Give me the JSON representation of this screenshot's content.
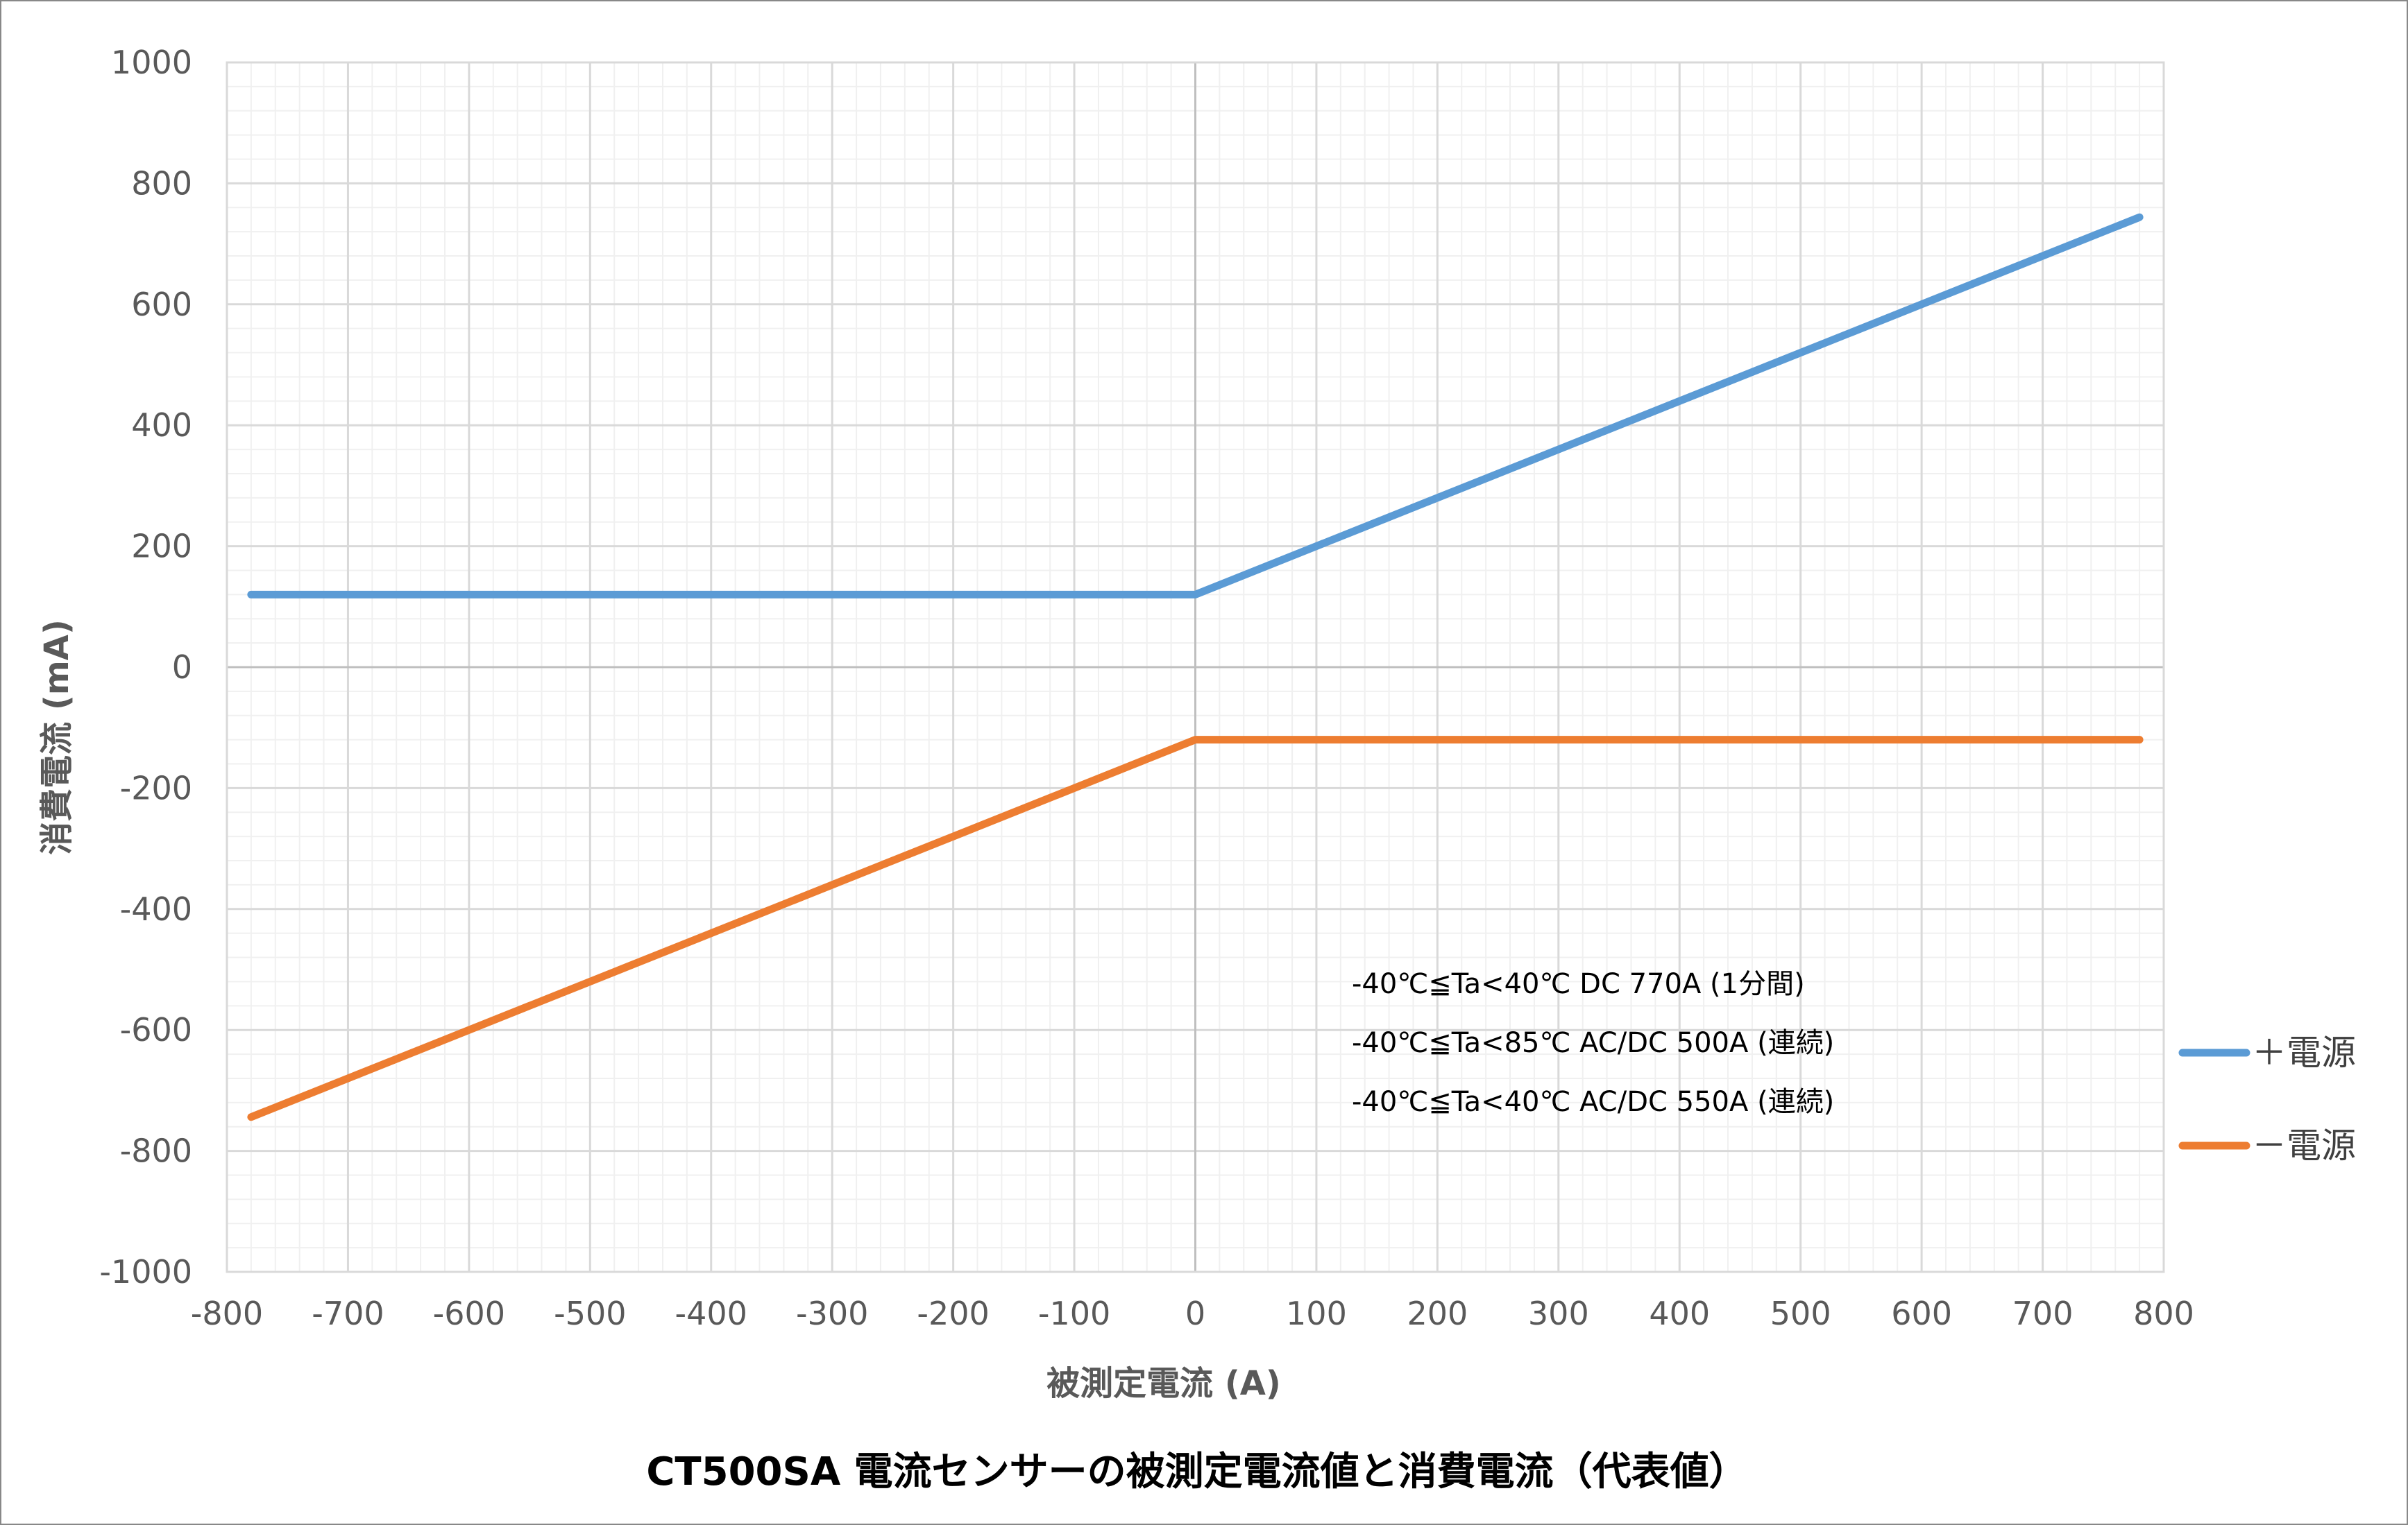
{
  "chart_data": {
    "type": "line",
    "title": "CT500SA 電流センサーの被測定電流値と消費電流（代表値）",
    "xlabel": "被測定電流 (A)",
    "ylabel": "消費電流 (mA)",
    "xlim": [
      -800,
      800
    ],
    "ylim": [
      -1000,
      1000
    ],
    "x_ticks": [
      "-800",
      "-700",
      "-600",
      "-500",
      "-400",
      "-300",
      "-200",
      "-100",
      "0",
      "100",
      "200",
      "300",
      "400",
      "500",
      "600",
      "700",
      "800"
    ],
    "y_ticks": [
      "1000",
      "800",
      "600",
      "400",
      "200",
      "0",
      "-200",
      "-400",
      "-600",
      "-800",
      "-1000"
    ],
    "x_major_step": 100,
    "y_major_step": 200,
    "minor_grid_divisions": 5,
    "grid": true,
    "legend_position": "right",
    "series": [
      {
        "name": "＋電源",
        "color": "#5B9BD5",
        "x": [
          -780,
          0,
          780
        ],
        "y": [
          120,
          120,
          744
        ]
      },
      {
        "name": "－電源",
        "color": "#ED7D31",
        "x": [
          -780,
          0,
          780
        ],
        "y": [
          -744,
          -120,
          -120
        ]
      }
    ],
    "annotations": [
      "-40℃≦Ta<40℃ DC 770A (1分間)",
      "-40℃≦Ta<85℃ AC/DC 500A (連続)",
      "-40℃≦Ta<40℃ AC/DC 550A (連続)"
    ]
  }
}
